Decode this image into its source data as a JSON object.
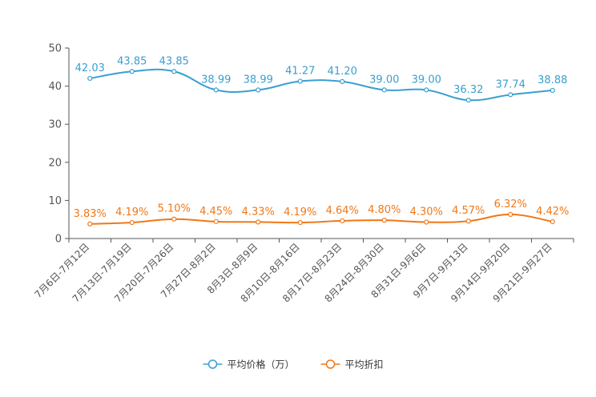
{
  "chart_data": {
    "type": "line",
    "title": "",
    "xlabel": "",
    "ylabel": "",
    "ylim": [
      0,
      50
    ],
    "yticks": [
      0,
      10,
      20,
      30,
      40,
      50
    ],
    "legend_position": "bottom",
    "categories": [
      "7月6日-7月12日",
      "7月13日-7月19日",
      "7月20日-7月26日",
      "7月27日-8月2日",
      "8月3日-8月9日",
      "8月10日-8月16日",
      "8月17日-8月23日",
      "8月24日-8月30日",
      "8月31日-9月6日",
      "9月7日-9月13日",
      "9月14日-9月20日",
      "9月21日-9月27日"
    ],
    "series": [
      {
        "name": "平均价格（万）",
        "color": "#3a9fd0",
        "values": [
          42.03,
          43.85,
          43.85,
          38.99,
          38.99,
          41.27,
          41.2,
          39.0,
          39.0,
          36.32,
          37.74,
          38.88
        ],
        "labels": [
          "42.03",
          "43.85",
          "43.85",
          "38.99",
          "38.99",
          "41.27",
          "41.20",
          "39.00",
          "39.00",
          "36.32",
          "37.74",
          "38.88"
        ]
      },
      {
        "name": "平均折扣",
        "color": "#f27716",
        "values": [
          3.83,
          4.19,
          5.1,
          4.45,
          4.33,
          4.19,
          4.64,
          4.8,
          4.3,
          4.57,
          6.32,
          4.42
        ],
        "labels": [
          "3.83%",
          "4.19%",
          "5.10%",
          "4.45%",
          "4.33%",
          "4.19%",
          "4.64%",
          "4.80%",
          "4.30%",
          "4.57%",
          "6.32%",
          "4.42%"
        ]
      }
    ]
  }
}
